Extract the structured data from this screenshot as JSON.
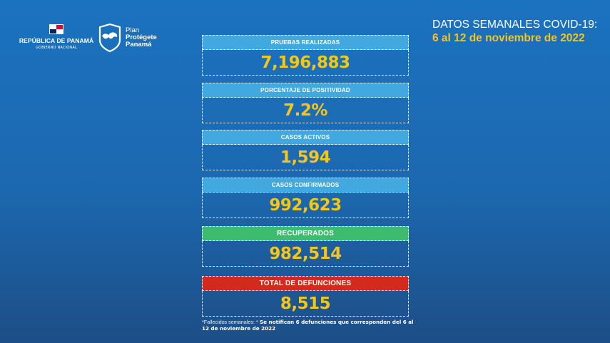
{
  "logos": {
    "government_title": "REPÚBLICA DE PANAMÁ",
    "government_subtitle": "GOBIERNO NACIONAL",
    "plan_line1": "Plan",
    "plan_line2": "Protégete",
    "plan_line3": "Panamá"
  },
  "header": {
    "title": "DATOS SEMANALES COVID-19:",
    "date_range": "6 al 12 de noviembre de 2022"
  },
  "stats": [
    {
      "label": "PRUEBAS REALIZADAS",
      "value": "7,196,883",
      "color": "#42a8e0"
    },
    {
      "label": "PORCENTAJE DE POSITIVIDAD",
      "value": "7.2%",
      "color": "#42a8e0"
    },
    {
      "label": "CASOS ACTIVOS",
      "value": "1,594",
      "color": "#42a8e0"
    },
    {
      "label": "CASOS CONFIRMADOS",
      "value": "992,623",
      "color": "#42a8e0"
    },
    {
      "label": "RECUPERADOS",
      "value": "982,514",
      "color": "#3dbb6e"
    },
    {
      "label": "TOTAL DE DEFUNCIONES",
      "value": "8,515",
      "color": "#d42a1e"
    }
  ],
  "footnote": {
    "prefix": "*Fallecidos semanales: *",
    "text": "Se notifican 6 defunciones que corresponden del 6 al 12 de noviembre de 2022"
  },
  "colors": {
    "accent_yellow": "#f5c518",
    "background": "#1b72bf"
  }
}
